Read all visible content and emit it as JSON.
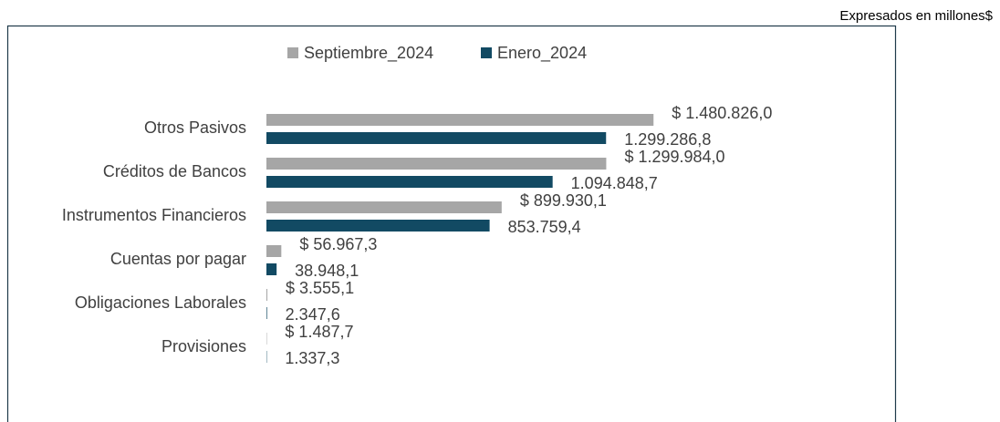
{
  "chart_data": {
    "type": "barh",
    "note": "Expresados en millones$",
    "categories": [
      "Otros Pasivos",
      "Créditos de Bancos",
      "Instrumentos Financieros",
      "Cuentas por pagar",
      "Obligaciones Laborales",
      "Provisiones"
    ],
    "series": [
      {
        "name": "Septiembre_2024",
        "color": "#a6a6a6",
        "values": [
          1480826.0,
          1299984.0,
          899930.1,
          56967.3,
          3555.1,
          1487.7
        ],
        "value_labels": [
          "$ 1.480.826,0",
          "$ 1.299.984,0",
          "$ 899.930,1",
          "$ 56.967,3",
          "$ 3.555,1",
          "$ 1.487,7"
        ]
      },
      {
        "name": "Enero_2024",
        "color": "#124a63",
        "values": [
          1299286.8,
          1094848.7,
          853759.4,
          38948.1,
          2347.6,
          1337.3
        ],
        "value_labels": [
          "1.299.286,8",
          "1.094.848,7",
          "853.759,4",
          "38.948,1",
          "2.347,6",
          "1.337,3"
        ]
      }
    ],
    "xlim": [
      0,
      2000000
    ],
    "legend": "top"
  }
}
